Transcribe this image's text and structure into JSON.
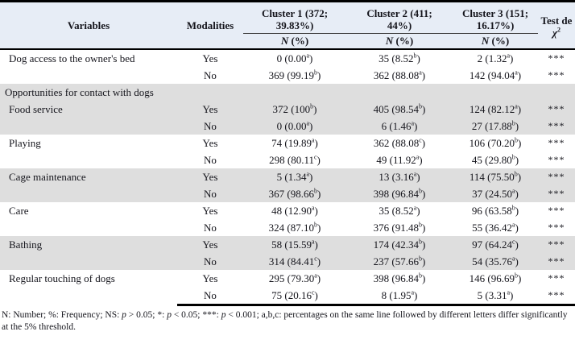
{
  "colors": {
    "header_bg": "#e7edf6",
    "row_band_bg": "#dedede",
    "border": "#000000",
    "text": "#15151c"
  },
  "table": {
    "headers": {
      "variables": "Variables",
      "modalities": "Modalities",
      "clusters": [
        {
          "line1": "Cluster 1 (372;",
          "line2": "39.83%)",
          "sub_n": "N",
          "sub_rest": " (%)"
        },
        {
          "line1": "Cluster 2 (411;",
          "line2": "44%)",
          "sub_n": "N",
          "sub_rest": " (%)"
        },
        {
          "line1": "Cluster 3 (151;",
          "line2": "16.17%)",
          "sub_n": "N",
          "sub_rest": " (%)"
        }
      ],
      "test_line1": "Test de",
      "test_chi": "χ",
      "test_sup": "2"
    },
    "groups": [
      {
        "name": "Dog access to the owner's bed",
        "shaded": false,
        "rows": [
          {
            "mod": "Yes",
            "c1": {
              "n": "0",
              "pct": "0.00",
              "s": "a"
            },
            "c2": {
              "n": "35",
              "pct": "8.52",
              "s": "b"
            },
            "c3": {
              "n": "2",
              "pct": "1.32",
              "s": "a"
            },
            "test": "***"
          },
          {
            "mod": "No",
            "c1": {
              "n": "369",
              "pct": "99.19",
              "s": "b"
            },
            "c2": {
              "n": "362",
              "pct": "88.08",
              "s": "a"
            },
            "c3": {
              "n": "142",
              "pct": "94.04",
              "s": "a"
            },
            "test": "***"
          }
        ]
      },
      {
        "section": "Opportunities for contact with dogs",
        "shaded": true
      },
      {
        "name": "Food service",
        "shaded": true,
        "rows": [
          {
            "mod": "Yes",
            "c1": {
              "n": "372",
              "pct": "100",
              "s": "b"
            },
            "c2": {
              "n": "405",
              "pct": "98.54",
              "s": "b"
            },
            "c3": {
              "n": "124",
              "pct": "82.12",
              "s": "a"
            },
            "test": "***"
          },
          {
            "mod": "No",
            "c1": {
              "n": "0",
              "pct": "0.00",
              "s": "a"
            },
            "c2": {
              "n": "6",
              "pct": "1.46",
              "s": "a"
            },
            "c3": {
              "n": "27",
              "pct": "17.88",
              "s": "b"
            },
            "test": "***"
          }
        ]
      },
      {
        "name": "Playing",
        "shaded": false,
        "rows": [
          {
            "mod": "Yes",
            "c1": {
              "n": "74",
              "pct": "19.89",
              "s": "a"
            },
            "c2": {
              "n": "362",
              "pct": "88.08",
              "s": "c"
            },
            "c3": {
              "n": "106",
              "pct": "70.20",
              "s": "b"
            },
            "test": "***"
          },
          {
            "mod": "No",
            "c1": {
              "n": "298",
              "pct": "80.11",
              "s": "c"
            },
            "c2": {
              "n": "49",
              "pct": "11.92",
              "s": "a"
            },
            "c3": {
              "n": "45",
              "pct": "29.80",
              "s": "b"
            },
            "test": "***"
          }
        ]
      },
      {
        "name": "Cage maintenance",
        "shaded": true,
        "rows": [
          {
            "mod": "Yes",
            "c1": {
              "n": "5",
              "pct": "1.34",
              "s": "a"
            },
            "c2": {
              "n": "13",
              "pct": "3.16",
              "s": "a"
            },
            "c3": {
              "n": "114",
              "pct": "75.50",
              "s": "b"
            },
            "test": "***"
          },
          {
            "mod": "No",
            "c1": {
              "n": "367",
              "pct": "98.66",
              "s": "b"
            },
            "c2": {
              "n": "398",
              "pct": "96.84",
              "s": "b"
            },
            "c3": {
              "n": "37",
              "pct": "24.50",
              "s": "a"
            },
            "test": "***"
          }
        ]
      },
      {
        "name": "Care",
        "shaded": false,
        "rows": [
          {
            "mod": "Yes",
            "c1": {
              "n": "48",
              "pct": "12.90",
              "s": "a"
            },
            "c2": {
              "n": "35",
              "pct": "8.52",
              "s": "a"
            },
            "c3": {
              "n": "96",
              "pct": "63.58",
              "s": "b"
            },
            "test": "***"
          },
          {
            "mod": "No",
            "c1": {
              "n": "324",
              "pct": "87.10",
              "s": "b"
            },
            "c2": {
              "n": "376",
              "pct": "91.48",
              "s": "b"
            },
            "c3": {
              "n": "55",
              "pct": "36.42",
              "s": "a"
            },
            "test": "***"
          }
        ]
      },
      {
        "name": "Bathing",
        "shaded": true,
        "rows": [
          {
            "mod": "Yes",
            "c1": {
              "n": "58",
              "pct": "15.59",
              "s": "a"
            },
            "c2": {
              "n": "174",
              "pct": "42.34",
              "s": "b"
            },
            "c3": {
              "n": "97",
              "pct": "64.24",
              "s": "c"
            },
            "test": "***"
          },
          {
            "mod": "No",
            "c1": {
              "n": "314",
              "pct": "84.41",
              "s": "c"
            },
            "c2": {
              "n": "237",
              "pct": "57.66",
              "s": "b"
            },
            "c3": {
              "n": "54",
              "pct": "35.76",
              "s": "a"
            },
            "test": "***"
          }
        ]
      },
      {
        "name": "Regular touching of dogs",
        "shaded": false,
        "rows": [
          {
            "mod": "Yes",
            "c1": {
              "n": "295",
              "pct": "79.30",
              "s": "a"
            },
            "c2": {
              "n": "398",
              "pct": "96.84",
              "s": "b"
            },
            "c3": {
              "n": "146",
              "pct": "96.69",
              "s": "b"
            },
            "test": "***"
          },
          {
            "mod": "No",
            "c1": {
              "n": "75",
              "pct": "20.16",
              "s": "c"
            },
            "c2": {
              "n": "8",
              "pct": "1.95",
              "s": "a"
            },
            "c3": {
              "n": "5",
              "pct": "3.31",
              "s": "a"
            },
            "test": "***"
          }
        ]
      }
    ]
  },
  "footnote": {
    "parts": [
      {
        "t": "N: Number; %: Frequency; NS: ",
        "i": false
      },
      {
        "t": "p",
        "i": true
      },
      {
        "t": " > 0.05; *: ",
        "i": false
      },
      {
        "t": "p",
        "i": true
      },
      {
        "t": " < 0.05; ***: ",
        "i": false
      },
      {
        "t": "p",
        "i": true
      },
      {
        "t": " < 0.001; a,b,c: percentages on the same line followed by different letters differ significantly at the 5% threshold.",
        "i": false
      }
    ]
  }
}
